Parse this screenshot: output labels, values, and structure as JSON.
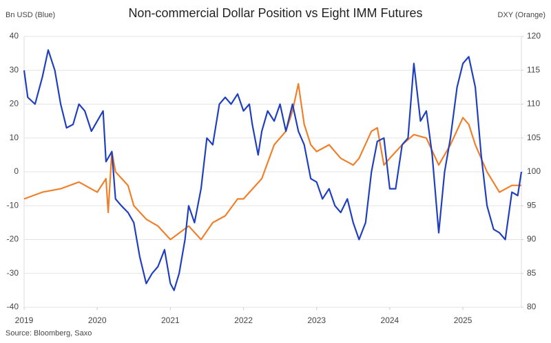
{
  "chart_data": {
    "type": "line",
    "title": "Non-commercial Dollar Position vs Eight IMM Futures",
    "y_label": "Bn USD (Blue)",
    "y2_label": "DXY (Orange)",
    "source": "Source: Bloomberg, Saxo",
    "xlim": [
      2019,
      2025.8
    ],
    "xticks": [
      2019,
      2020,
      2021,
      2022,
      2023,
      2024,
      2025
    ],
    "ylim": [
      -40,
      40
    ],
    "yticks": [
      -40,
      -30,
      -20,
      -10,
      0,
      10,
      20,
      30,
      40
    ],
    "y2lim": [
      80,
      120
    ],
    "y2ticks": [
      80,
      85,
      90,
      95,
      100,
      105,
      110,
      115,
      120
    ],
    "grid": true,
    "series": [
      {
        "name": "Bn USD",
        "color": "#1f3fbf",
        "x": [
          2019.0,
          2019.05,
          2019.15,
          2019.25,
          2019.33,
          2019.42,
          2019.5,
          2019.58,
          2019.67,
          2019.75,
          2019.83,
          2019.92,
          2020.0,
          2020.08,
          2020.12,
          2020.2,
          2020.25,
          2020.33,
          2020.42,
          2020.5,
          2020.58,
          2020.67,
          2020.75,
          2020.83,
          2020.92,
          2021.0,
          2021.05,
          2021.12,
          2021.2,
          2021.25,
          2021.33,
          2021.42,
          2021.5,
          2021.58,
          2021.67,
          2021.75,
          2021.83,
          2021.92,
          2022.0,
          2022.08,
          2022.12,
          2022.2,
          2022.25,
          2022.33,
          2022.42,
          2022.5,
          2022.58,
          2022.67,
          2022.75,
          2022.83,
          2022.92,
          2023.0,
          2023.08,
          2023.17,
          2023.25,
          2023.33,
          2023.42,
          2023.5,
          2023.58,
          2023.67,
          2023.75,
          2023.83,
          2023.92,
          2024.0,
          2024.08,
          2024.17,
          2024.25,
          2024.33,
          2024.42,
          2024.5,
          2024.58,
          2024.67,
          2024.75,
          2024.83,
          2024.92,
          2025.0,
          2025.08,
          2025.17,
          2025.25,
          2025.33,
          2025.42,
          2025.5,
          2025.58,
          2025.67,
          2025.75,
          2025.8
        ],
        "values": [
          30,
          22,
          20,
          28,
          36,
          30,
          20,
          13,
          14,
          20,
          18,
          12,
          15,
          18,
          3,
          6,
          -8,
          -10,
          -12,
          -15,
          -25,
          -33,
          -30,
          -28,
          -23,
          -33,
          -35,
          -30,
          -20,
          -10,
          -15,
          -5,
          10,
          8,
          20,
          22,
          20,
          23,
          18,
          20,
          14,
          5,
          12,
          18,
          15,
          20,
          12,
          20,
          12,
          8,
          -2,
          -3,
          -8,
          -5,
          -10,
          -12,
          -8,
          -15,
          -20,
          -15,
          0,
          9,
          10,
          -5,
          -5,
          8,
          10,
          32,
          15,
          18,
          5,
          -18,
          0,
          10,
          25,
          32,
          34,
          25,
          5,
          -10,
          -17,
          -18,
          -20,
          -6,
          -7,
          0
        ]
      },
      {
        "name": "DXY",
        "color": "#f07f2a",
        "axis": "y2",
        "x": [
          2019.0,
          2019.25,
          2019.5,
          2019.75,
          2020.0,
          2020.12,
          2020.15,
          2020.2,
          2020.25,
          2020.42,
          2020.5,
          2020.67,
          2020.83,
          2021.0,
          2021.25,
          2021.42,
          2021.58,
          2021.75,
          2021.92,
          2022.0,
          2022.25,
          2022.42,
          2022.58,
          2022.67,
          2022.75,
          2022.83,
          2022.92,
          2023.0,
          2023.17,
          2023.33,
          2023.5,
          2023.58,
          2023.75,
          2023.83,
          2023.92,
          2024.0,
          2024.17,
          2024.33,
          2024.5,
          2024.67,
          2024.83,
          2025.0,
          2025.08,
          2025.17,
          2025.33,
          2025.5,
          2025.67,
          2025.8
        ],
        "values": [
          96,
          97,
          97.5,
          98.5,
          97,
          99,
          94,
          103,
          100,
          98,
          95,
          93,
          92,
          90,
          92,
          90,
          92.5,
          93.5,
          96,
          96,
          99,
          104,
          106,
          109,
          113,
          107,
          104,
          103,
          104,
          102,
          101,
          102,
          106,
          106.5,
          101,
          102,
          104,
          105.5,
          105,
          101,
          104,
          108,
          107,
          104,
          100,
          97,
          98,
          98
        ]
      }
    ]
  }
}
